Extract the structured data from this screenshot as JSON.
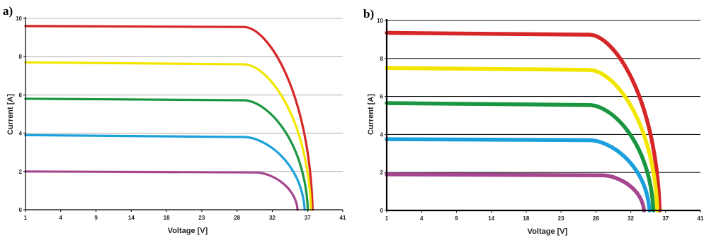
{
  "chart_data": [
    {
      "type": "line",
      "panel_label": "a)",
      "xlabel": "Voltage [V]",
      "ylabel": "Current [A]",
      "xtick_labels": [
        "1",
        "4",
        "9",
        "14",
        "18",
        "23",
        "28",
        "32",
        "37",
        "41"
      ],
      "ytick_labels": [
        "0",
        "2",
        "4",
        "6",
        "8",
        "10"
      ],
      "ylim": [
        0,
        10
      ],
      "grid": "horizontal",
      "series": [
        {
          "color": "#d62728",
          "isc": 9.6,
          "knee_v": 28.5,
          "knee_i": 9.55,
          "voc": 37.2
        },
        {
          "color": "#f2e600",
          "isc": 7.7,
          "knee_v": 28.5,
          "knee_i": 7.6,
          "voc": 37.0
        },
        {
          "color": "#1a9640",
          "isc": 5.8,
          "knee_v": 28.5,
          "knee_i": 5.72,
          "voc": 36.6
        },
        {
          "color": "#1aa0dc",
          "isc": 3.9,
          "knee_v": 28.5,
          "knee_i": 3.8,
          "voc": 36.2
        },
        {
          "color": "#a5468f",
          "isc": 2.0,
          "knee_v": 30.0,
          "knee_i": 1.95,
          "voc": 35.3
        }
      ]
    },
    {
      "type": "line",
      "panel_label": "b)",
      "xlabel": "Voltage [V]",
      "ylabel": "Current [A]",
      "xtick_labels": [
        "1",
        "4",
        "9",
        "14",
        "18",
        "23",
        "28",
        "32",
        "37",
        "41"
      ],
      "ytick_labels": [
        "0",
        "2",
        "4",
        "6",
        "8",
        "10"
      ],
      "ylim": [
        0,
        10
      ],
      "grid": "horizontal",
      "series": [
        {
          "color": "#d62728",
          "isc": 9.35,
          "knee_v": 26.8,
          "knee_i": 9.25,
          "voc": 35.8
        },
        {
          "color": "#f2e600",
          "isc": 7.5,
          "knee_v": 26.8,
          "knee_i": 7.4,
          "voc": 35.5
        },
        {
          "color": "#1a9640",
          "isc": 5.65,
          "knee_v": 26.8,
          "knee_i": 5.55,
          "voc": 35.0
        },
        {
          "color": "#1aa0dc",
          "isc": 3.75,
          "knee_v": 26.8,
          "knee_i": 3.7,
          "voc": 34.5
        },
        {
          "color": "#a5468f",
          "isc": 1.9,
          "knee_v": 28.5,
          "knee_i": 1.85,
          "voc": 33.8
        }
      ]
    }
  ]
}
